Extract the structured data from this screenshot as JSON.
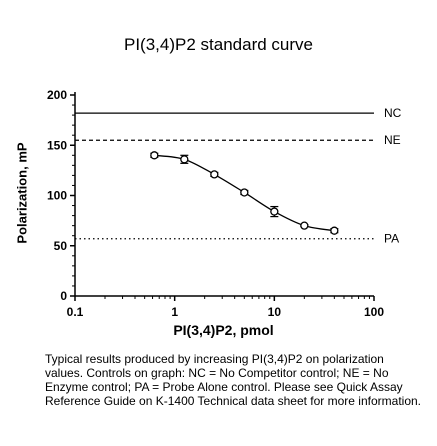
{
  "chart_data": {
    "type": "line",
    "title": "PI(3,4)P2 standard curve",
    "xlabel": "PI(3,4)P2, pmol",
    "ylabel": "Polarization, mP",
    "xscale": "log",
    "xlim": [
      0.1,
      100
    ],
    "ylim": [
      0,
      200
    ],
    "x_ticks": [
      0.1,
      1,
      10,
      100
    ],
    "x_tick_labels": [
      "0.1",
      "1",
      "10",
      "100"
    ],
    "y_ticks": [
      0,
      50,
      100,
      150,
      200
    ],
    "y_tick_labels": [
      "0",
      "50",
      "100",
      "150",
      "200"
    ],
    "grid": false,
    "series": [
      {
        "x": [
          0.625,
          1.25,
          2.5,
          5,
          10,
          20,
          40
        ],
        "y": [
          140,
          136,
          121,
          103,
          84,
          70,
          65
        ],
        "error": [
          2,
          4,
          2,
          2,
          5,
          1,
          2
        ]
      }
    ],
    "reference_lines": [
      {
        "label": "NC",
        "y": 182,
        "style": "solid"
      },
      {
        "label": "NE",
        "y": 155,
        "style": "dashed"
      },
      {
        "label": "PA",
        "y": 57,
        "style": "dotted"
      }
    ]
  },
  "caption": "Typical results produced by increasing PI(3,4)P2 on polarization values.  Controls on graph: NC = No Competitor control; NE = No Enzyme control; PA = Probe Alone control. Please see Quick Assay Reference Guide on K-1400 Technical data sheet for more information."
}
